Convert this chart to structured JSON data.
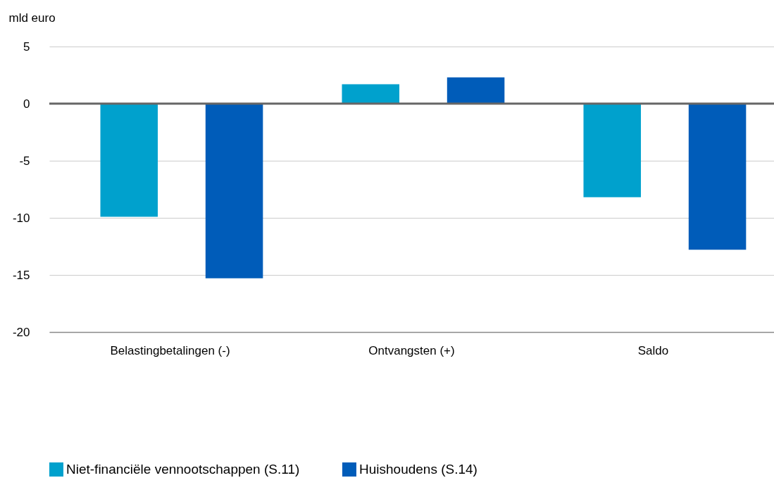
{
  "chart_data": {
    "type": "bar",
    "ylabel": "mld euro",
    "categories": [
      "Belastingbetalingen (-)",
      "Ontvangsten (+)",
      "Saldo"
    ],
    "series": [
      {
        "name": "Niet-financiële vennootschappen (S.11)",
        "color": "#00a1cd",
        "values": [
          -9.9,
          1.7,
          -8.2
        ]
      },
      {
        "name": "Huishoudens (S.14)",
        "color": "#005cb9",
        "values": [
          -15.3,
          2.3,
          -12.8
        ]
      }
    ],
    "ylim": [
      -20,
      5
    ],
    "yticks": [
      -20,
      -15,
      -10,
      -5,
      0,
      5
    ],
    "grid": "y",
    "legend": "bottom",
    "ref_lines": [
      {
        "axis": "y",
        "value": 0,
        "color": "#666666"
      }
    ]
  }
}
